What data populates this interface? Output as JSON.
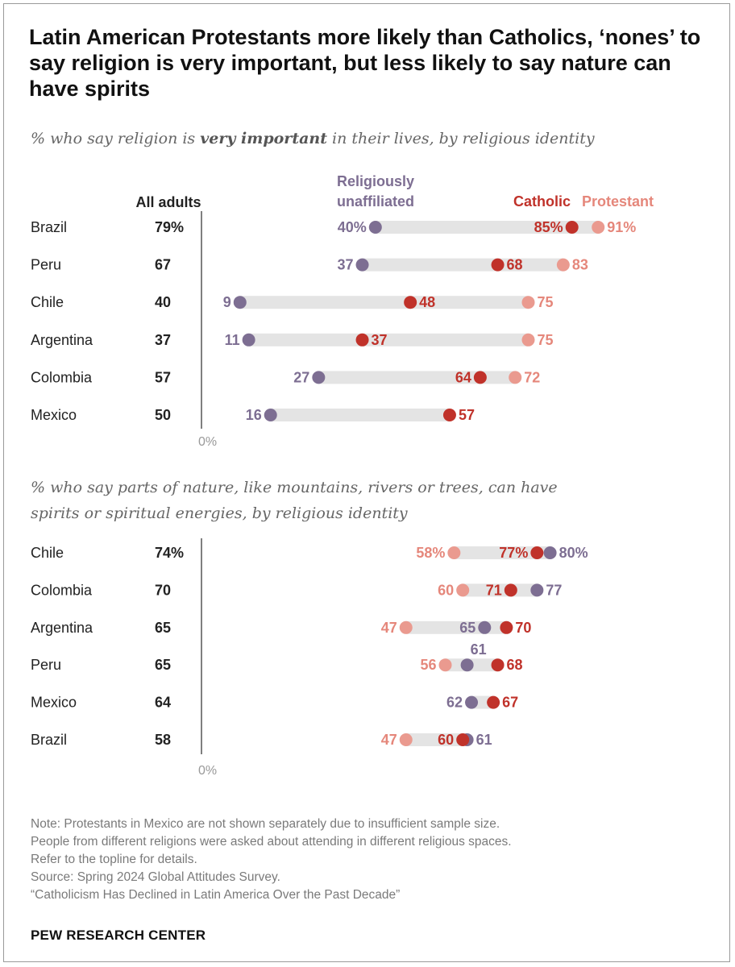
{
  "title": "Latin American Protestants more likely than Catholics, ‘nones’ to say religion is very important, but less likely to say nature can have spirits",
  "colors": {
    "unaffiliated": "#7d6e92",
    "catholic": "#c0322a",
    "protestant": "#ea9a8f",
    "bar": "#e4e4e4"
  },
  "chart_data": [
    {
      "type": "dot-range",
      "subtitle_pre": "% who say religion is ",
      "subtitle_bold": "very important",
      "subtitle_post": " in their lives, by religious identity",
      "all_adults_header": "All adults",
      "legend": {
        "unaffiliated_line1": "Religiously",
        "unaffiliated_line2": "unaffiliated",
        "catholic": "Catholic",
        "protestant": "Protestant"
      },
      "axis_label": "0%",
      "unit": "%",
      "rows": [
        {
          "country": "Brazil",
          "all": 79,
          "unaffiliated": 40,
          "catholic": 85,
          "protestant": 91
        },
        {
          "country": "Peru",
          "all": 67,
          "unaffiliated": 37,
          "catholic": 68,
          "protestant": 83
        },
        {
          "country": "Chile",
          "all": 40,
          "unaffiliated": 9,
          "catholic": 48,
          "protestant": 75
        },
        {
          "country": "Argentina",
          "all": 37,
          "unaffiliated": 11,
          "catholic": 37,
          "protestant": 75
        },
        {
          "country": "Colombia",
          "all": 57,
          "unaffiliated": 27,
          "catholic": 64,
          "protestant": 72
        },
        {
          "country": "Mexico",
          "all": 50,
          "unaffiliated": 16,
          "catholic": 57,
          "protestant": null
        }
      ]
    },
    {
      "type": "dot-range",
      "subtitle_line1": "% who say parts of nature, like mountains, rivers or trees, can have",
      "subtitle_line2": "spirits or spiritual energies, by religious identity",
      "axis_label": "0%",
      "unit": "%",
      "rows": [
        {
          "country": "Chile",
          "all": 74,
          "unaffiliated": 80,
          "catholic": 77,
          "protestant": 58
        },
        {
          "country": "Colombia",
          "all": 70,
          "unaffiliated": 77,
          "catholic": 71,
          "protestant": 60
        },
        {
          "country": "Argentina",
          "all": 65,
          "unaffiliated": 65,
          "catholic": 70,
          "protestant": 47
        },
        {
          "country": "Peru",
          "all": 65,
          "unaffiliated": 61,
          "catholic": 68,
          "protestant": 56
        },
        {
          "country": "Mexico",
          "all": 64,
          "unaffiliated": 62,
          "catholic": 67,
          "protestant": null
        },
        {
          "country": "Brazil",
          "all": 58,
          "unaffiliated": 61,
          "catholic": 60,
          "protestant": 47
        }
      ]
    }
  ],
  "notes": [
    "Note: Protestants in Mexico are not shown separately due to insufficient sample size.",
    "People from different religions were asked about attending in different religious spaces.",
    "Refer to the topline for details.",
    "Source: Spring 2024 Global Attitudes Survey.",
    "“Catholicism Has Declined in Latin America Over the Past Decade”"
  ],
  "logo": "PEW RESEARCH CENTER"
}
